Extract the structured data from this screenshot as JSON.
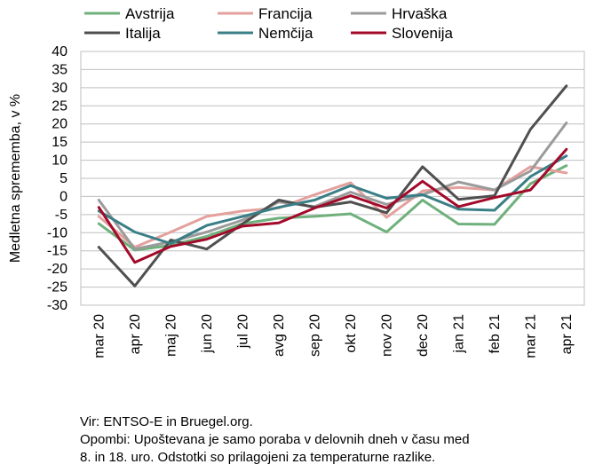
{
  "chart_data": {
    "type": "line",
    "ylabel": "Medletna sprememba, v %",
    "ylim": [
      -30,
      40
    ],
    "yticks": [
      -30,
      -25,
      -20,
      -15,
      -10,
      -5,
      0,
      5,
      10,
      15,
      20,
      25,
      30,
      35,
      40
    ],
    "grid": true,
    "legend": "top",
    "categories": [
      "mar 20",
      "apr 20",
      "maj 20",
      "jun 20",
      "jul 20",
      "avg 20",
      "sep 20",
      "okt 20",
      "nov 20",
      "dec 20",
      "jan 21",
      "feb 21",
      "mar 21",
      "apr 21"
    ],
    "series": [
      {
        "name": "Avstrija",
        "color": "#6fb07c",
        "values": [
          -7.5,
          -14.8,
          -13.5,
          -11,
          -7.5,
          -6,
          -5.5,
          -4.8,
          -9.8,
          -1,
          -7.6,
          -7.7,
          3.5,
          8.5
        ]
      },
      {
        "name": "Francija",
        "color": "#e3a09d",
        "values": [
          -5.5,
          -14,
          -9.8,
          -5.5,
          -4,
          -3.2,
          0.5,
          3.8,
          -5.8,
          1.5,
          2.5,
          1.8,
          8.2,
          6.5
        ]
      },
      {
        "name": "Hrvaška",
        "color": "#9b9b9b",
        "values": [
          -1,
          -14.5,
          -12.5,
          -9.8,
          -6.5,
          -1.5,
          -2.8,
          1.2,
          -2.2,
          0.5,
          4,
          1.8,
          7,
          20.3
        ]
      },
      {
        "name": "Italija",
        "color": "#4f4f4f",
        "values": [
          -14,
          -24.7,
          -12,
          -14.5,
          -7.5,
          -1,
          -3,
          -1.5,
          -4.5,
          8.2,
          -0.8,
          0.2,
          18.5,
          30.5
        ]
      },
      {
        "name": "Nemčija",
        "color": "#3a7f86",
        "values": [
          -4,
          -9.8,
          -13,
          -8,
          -5.5,
          -3,
          -1,
          3,
          -0.5,
          0.5,
          -3.5,
          -3.8,
          5.5,
          11.2
        ]
      },
      {
        "name": "Slovenija",
        "color": "#a30a2a",
        "values": [
          -3,
          -18.2,
          -13.8,
          -11.8,
          -8.2,
          -7.3,
          -3.2,
          0.2,
          -3.2,
          4.2,
          -2.8,
          -0.3,
          1.8,
          13
        ]
      }
    ]
  },
  "notes": {
    "source": "Vir: ENTSO-E in Bruegel.org.",
    "remarks_line1": "Opombi: Upoštevana je samo poraba v delovnih dneh v času med",
    "remarks_line2": "8. in 18. uro. Odstotki so prilagojeni za temperaturne razlike."
  }
}
